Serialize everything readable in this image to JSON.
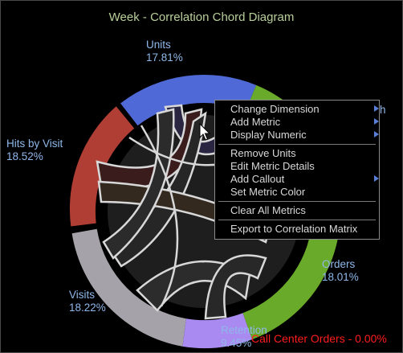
{
  "title": "Week - Correlation Chord Diagram",
  "segments": [
    {
      "name": "Units",
      "percent": "17.81%",
      "color": "#4f6ad6"
    },
    {
      "name": "Hits by Visit",
      "percent": "18.52%",
      "color": "#b03e35"
    },
    {
      "name": "Visits",
      "percent": "18.22%",
      "color": "#a5a3a9"
    },
    {
      "name": "Retention",
      "percent": "9.45%",
      "color": "#a98af0"
    },
    {
      "name": "Orders",
      "percent": "18.01%",
      "color": "#6aaa2a"
    },
    {
      "name": "Call Center Orders",
      "percent": "0.00%",
      "color": "#ff1c1c"
    }
  ],
  "footer_label": "Call Center Orders - 0.00%",
  "edge_fragment": "h",
  "context_menu": {
    "group1": [
      {
        "label": "Change Dimension",
        "submenu": true
      },
      {
        "label": "Add Metric",
        "submenu": true
      },
      {
        "label": "Display Numeric",
        "submenu": true
      }
    ],
    "group2": [
      {
        "label": "Remove Units",
        "submenu": false
      },
      {
        "label": "Edit Metric Details",
        "submenu": false
      },
      {
        "label": "Add Callout",
        "submenu": true
      },
      {
        "label": "Set Metric Color",
        "submenu": false
      }
    ],
    "group3": [
      {
        "label": "Clear All Metrics",
        "submenu": false
      }
    ],
    "group4": [
      {
        "label": "Export to Correlation Matrix",
        "submenu": false
      }
    ]
  }
}
